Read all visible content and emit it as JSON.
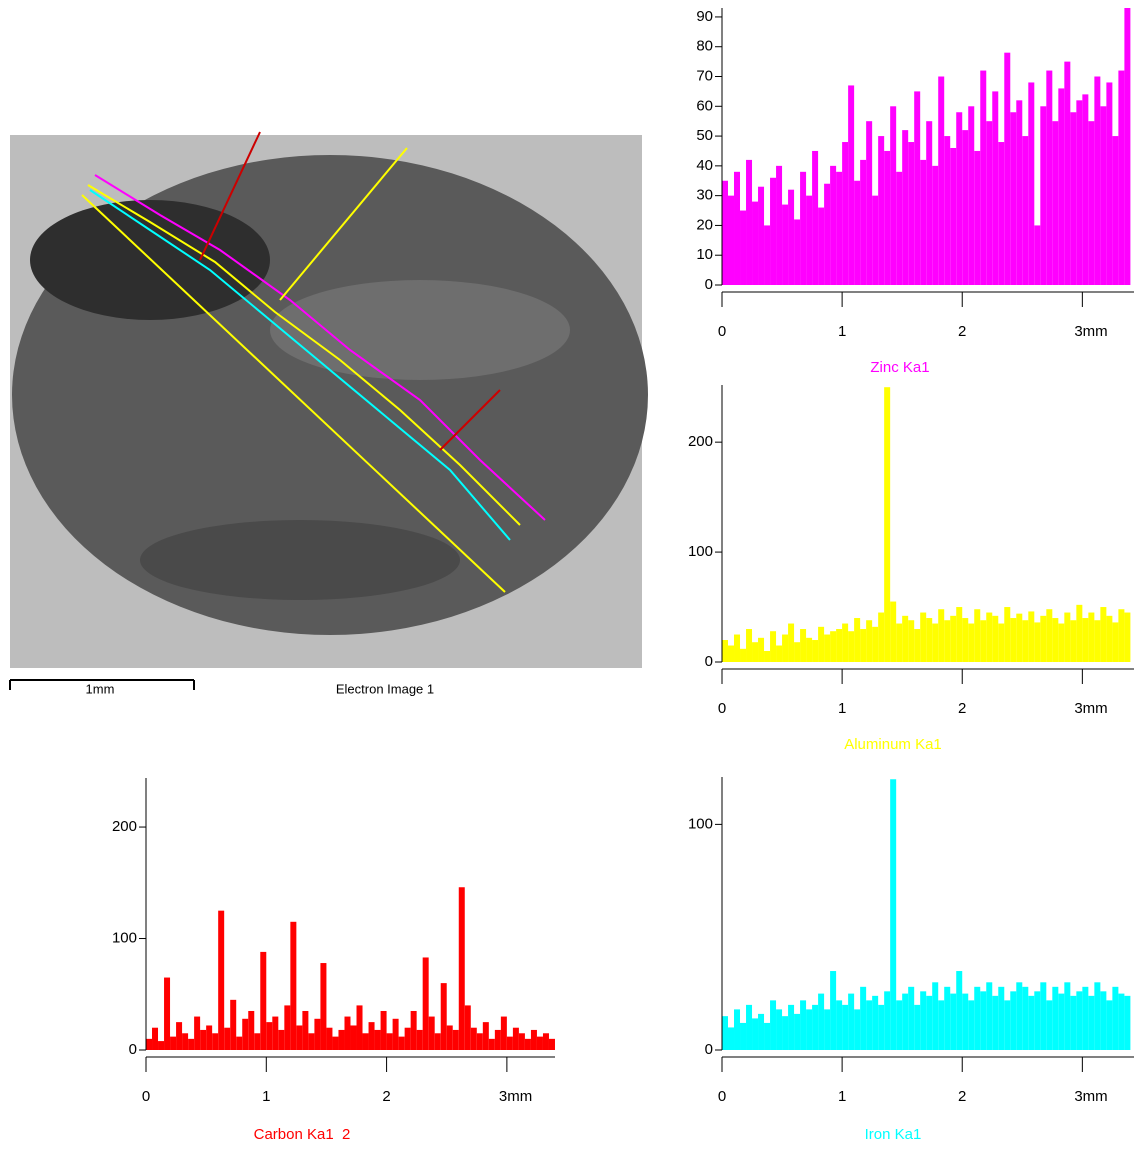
{
  "image": {
    "scale_label": "1mm",
    "caption": "Electron Image 1"
  },
  "chart_data": [
    {
      "type": "bar",
      "title": "Zinc Ka1",
      "color": "#ff00ff",
      "x": [
        0,
        0.05,
        0.1,
        0.15,
        0.2,
        0.25,
        0.3,
        0.35,
        0.4,
        0.45,
        0.5,
        0.55,
        0.6,
        0.65,
        0.7,
        0.75,
        0.8,
        0.85,
        0.9,
        0.95,
        1,
        1.05,
        1.1,
        1.15,
        1.2,
        1.25,
        1.3,
        1.35,
        1.4,
        1.45,
        1.5,
        1.55,
        1.6,
        1.65,
        1.7,
        1.75,
        1.8,
        1.85,
        1.9,
        1.95,
        2,
        2.05,
        2.1,
        2.15,
        2.2,
        2.25,
        2.3,
        2.35,
        2.4,
        2.45,
        2.5,
        2.55,
        2.6,
        2.65,
        2.7,
        2.75,
        2.8,
        2.85,
        2.9,
        2.95,
        3,
        3.05,
        3.1,
        3.15,
        3.2,
        3.25,
        3.3,
        3.35
      ],
      "values": [
        35,
        30,
        38,
        25,
        42,
        28,
        33,
        20,
        36,
        40,
        27,
        32,
        22,
        38,
        30,
        45,
        26,
        34,
        40,
        38,
        48,
        67,
        35,
        42,
        55,
        30,
        50,
        45,
        60,
        38,
        52,
        48,
        65,
        42,
        55,
        40,
        70,
        50,
        46,
        58,
        52,
        60,
        45,
        72,
        55,
        65,
        48,
        78,
        58,
        62,
        50,
        68,
        20,
        60,
        72,
        55,
        66,
        75,
        58,
        62,
        64,
        55,
        70,
        60,
        68,
        50,
        72,
        93
      ],
      "xlim": [
        0,
        3.43
      ],
      "xticks": [
        0,
        1,
        2,
        {
          "value": 3,
          "label": "3mm"
        }
      ],
      "ylim": [
        0,
        93
      ],
      "yticks": [
        0,
        10,
        20,
        30,
        40,
        50,
        60,
        70,
        80,
        90
      ]
    },
    {
      "type": "bar",
      "title": "Aluminum Ka1",
      "color": "#ffff00",
      "x": [
        0,
        0.05,
        0.1,
        0.15,
        0.2,
        0.25,
        0.3,
        0.35,
        0.4,
        0.45,
        0.5,
        0.55,
        0.6,
        0.65,
        0.7,
        0.75,
        0.8,
        0.85,
        0.9,
        0.95,
        1,
        1.05,
        1.1,
        1.15,
        1.2,
        1.25,
        1.3,
        1.35,
        1.4,
        1.45,
        1.5,
        1.55,
        1.6,
        1.65,
        1.7,
        1.75,
        1.8,
        1.85,
        1.9,
        1.95,
        2,
        2.05,
        2.1,
        2.15,
        2.2,
        2.25,
        2.3,
        2.35,
        2.4,
        2.45,
        2.5,
        2.55,
        2.6,
        2.65,
        2.7,
        2.75,
        2.8,
        2.85,
        2.9,
        2.95,
        3,
        3.05,
        3.1,
        3.15,
        3.2,
        3.25,
        3.3,
        3.35
      ],
      "values": [
        20,
        15,
        25,
        12,
        30,
        18,
        22,
        10,
        28,
        15,
        25,
        35,
        18,
        30,
        22,
        20,
        32,
        25,
        28,
        30,
        35,
        28,
        40,
        30,
        38,
        32,
        45,
        250,
        55,
        35,
        42,
        38,
        30,
        45,
        40,
        35,
        48,
        38,
        42,
        50,
        40,
        35,
        48,
        38,
        45,
        42,
        35,
        50,
        40,
        44,
        38,
        46,
        36,
        42,
        48,
        40,
        35,
        45,
        38,
        52,
        40,
        45,
        38,
        50,
        42,
        36,
        48,
        45
      ],
      "xlim": [
        0,
        3.43
      ],
      "xticks": [
        0,
        1,
        2,
        {
          "value": 3,
          "label": "3mm"
        }
      ],
      "ylim": [
        0,
        252
      ],
      "yticks": [
        0,
        100,
        200
      ]
    },
    {
      "type": "bar",
      "title": "Carbon Ka1  2",
      "color": "#ff0000",
      "x": [
        0,
        0.05,
        0.1,
        0.15,
        0.2,
        0.25,
        0.3,
        0.35,
        0.4,
        0.45,
        0.5,
        0.55,
        0.6,
        0.65,
        0.7,
        0.75,
        0.8,
        0.85,
        0.9,
        0.95,
        1,
        1.05,
        1.1,
        1.15,
        1.2,
        1.25,
        1.3,
        1.35,
        1.4,
        1.45,
        1.5,
        1.55,
        1.6,
        1.65,
        1.7,
        1.75,
        1.8,
        1.85,
        1.9,
        1.95,
        2,
        2.05,
        2.1,
        2.15,
        2.2,
        2.25,
        2.3,
        2.35,
        2.4,
        2.45,
        2.5,
        2.55,
        2.6,
        2.65,
        2.7,
        2.75,
        2.8,
        2.85,
        2.9,
        2.95,
        3,
        3.05,
        3.1,
        3.15,
        3.2,
        3.25,
        3.3,
        3.35
      ],
      "values": [
        10,
        20,
        8,
        65,
        12,
        25,
        15,
        10,
        30,
        18,
        22,
        15,
        125,
        20,
        45,
        12,
        28,
        35,
        15,
        88,
        25,
        30,
        18,
        40,
        115,
        22,
        35,
        15,
        28,
        78,
        20,
        12,
        18,
        30,
        22,
        40,
        15,
        25,
        18,
        35,
        15,
        28,
        12,
        20,
        35,
        18,
        83,
        30,
        15,
        60,
        22,
        18,
        146,
        40,
        20,
        15,
        25,
        10,
        18,
        30,
        12,
        20,
        15,
        10,
        18,
        12,
        15,
        10
      ],
      "xlim": [
        0,
        3.4
      ],
      "xticks": [
        0,
        1,
        2,
        {
          "value": 3,
          "label": "3mm"
        }
      ],
      "ylim": [
        0,
        244
      ],
      "yticks": [
        0,
        100,
        200
      ]
    },
    {
      "type": "bar",
      "title": "Iron Ka1",
      "color": "#00ffff",
      "x": [
        0,
        0.05,
        0.1,
        0.15,
        0.2,
        0.25,
        0.3,
        0.35,
        0.4,
        0.45,
        0.5,
        0.55,
        0.6,
        0.65,
        0.7,
        0.75,
        0.8,
        0.85,
        0.9,
        0.95,
        1,
        1.05,
        1.1,
        1.15,
        1.2,
        1.25,
        1.3,
        1.35,
        1.4,
        1.45,
        1.5,
        1.55,
        1.6,
        1.65,
        1.7,
        1.75,
        1.8,
        1.85,
        1.9,
        1.95,
        2,
        2.05,
        2.1,
        2.15,
        2.2,
        2.25,
        2.3,
        2.35,
        2.4,
        2.45,
        2.5,
        2.55,
        2.6,
        2.65,
        2.7,
        2.75,
        2.8,
        2.85,
        2.9,
        2.95,
        3,
        3.05,
        3.1,
        3.15,
        3.2,
        3.25,
        3.3,
        3.35
      ],
      "values": [
        15,
        10,
        18,
        12,
        20,
        14,
        16,
        12,
        22,
        18,
        15,
        20,
        16,
        22,
        18,
        20,
        25,
        18,
        35,
        22,
        20,
        25,
        18,
        28,
        22,
        24,
        20,
        26,
        120,
        22,
        25,
        28,
        20,
        26,
        24,
        30,
        22,
        28,
        25,
        35,
        25,
        22,
        28,
        26,
        30,
        24,
        28,
        22,
        26,
        30,
        28,
        24,
        26,
        30,
        22,
        28,
        25,
        30,
        24,
        26,
        28,
        24,
        30,
        26,
        22,
        28,
        25,
        24
      ],
      "xlim": [
        0,
        3.43
      ],
      "xticks": [
        0,
        1,
        2,
        {
          "value": 3,
          "label": "3mm"
        }
      ],
      "ylim": [
        0,
        121
      ],
      "yticks": [
        0,
        100
      ]
    }
  ]
}
